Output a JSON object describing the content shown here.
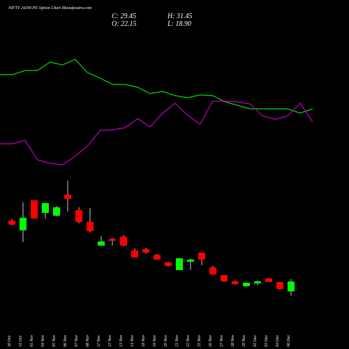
{
  "chart_data": {
    "type": "candlestick",
    "title": "NIFTY 24200 PE Option Chart Munafasutra.com",
    "ohlc_labels": {
      "close": "C: 29.45",
      "high": "H: 31.45",
      "open": "O: 22.15",
      "low": "L: 18.90"
    },
    "categories": [
      "30 Oct",
      "31 Oct",
      "01 Nov",
      "04 Nov",
      "05 Nov",
      "06 Nov",
      "07 Nov",
      "08 Nov",
      "11 Nov",
      "12 Nov",
      "13 Nov",
      "14 Nov",
      "18 Nov",
      "19 Nov",
      "20 Nov",
      "21 Nov",
      "22 Nov",
      "25 Nov",
      "26 Nov",
      "27 Nov",
      "28 Nov",
      "29 Nov",
      "02 Dec",
      "03 Dec",
      "04 Dec",
      "06 Dec"
    ],
    "open": [
      74.9,
      67.6,
      90,
      80.6,
      78.5,
      94.1,
      82.7,
      73.8,
      56.2,
      61.4,
      62.9,
      52.5,
      53.6,
      49.4,
      43.7,
      38,
      44.2,
      51,
      40,
      34.3,
      29.6,
      26,
      28.1,
      31.7,
      29.1,
      22.15
    ],
    "high": [
      76,
      88.4,
      90,
      87.9,
      85.8,
      104.5,
      84.8,
      84.2,
      63.4,
      61.9,
      64,
      54.1,
      54.6,
      49.9,
      44.2,
      46.8,
      46.8,
      51,
      41.1,
      34.3,
      30.2,
      28.6,
      30.2,
      32.2,
      29.1,
      31.45
    ],
    "low": [
      71.3,
      58.8,
      76.4,
      76.4,
      78,
      81.6,
      72.8,
      66,
      56.2,
      56.2,
      55.6,
      47.3,
      50.4,
      45.8,
      40.6,
      38,
      38,
      41.6,
      34.3,
      29.1,
      27,
      25.5,
      26.5,
      29.1,
      23.4,
      18.9
    ],
    "close": [
      71.8,
      77,
      76.4,
      87.9,
      84.8,
      91,
      73.8,
      67.1,
      59.3,
      59.8,
      56.2,
      47.3,
      51,
      45.8,
      41.1,
      46.8,
      45.8,
      45.8,
      34.8,
      29.6,
      27.6,
      28.6,
      29.6,
      29.1,
      23.9,
      29.45
    ],
    "ylim": [
      0,
      130
    ],
    "up_color": "#00ff00",
    "down_color": "#ff0000",
    "series": [
      {
        "color": "#00e000",
        "axis": "y2",
        "values": [
          96.5,
          96.5,
          99.5,
          99.5,
          105.5,
          103.5,
          107.5,
          98,
          94,
          89.5,
          89.5,
          87.5,
          83,
          84.5,
          81.5,
          80,
          82,
          81.5,
          77,
          74.5,
          72,
          72,
          72,
          72,
          69,
          72
        ]
      },
      {
        "color": "#c000c0",
        "axis": "y2",
        "values": [
          47,
          47,
          49.5,
          35.5,
          33,
          32,
          38,
          45.5,
          56.5,
          57,
          58.5,
          65,
          59,
          69,
          76,
          67.5,
          61,
          77.5,
          77.5,
          77,
          75.5,
          67,
          64.5,
          67,
          76,
          62.5
        ]
      }
    ],
    "y2lim": [
      0,
      150
    ]
  }
}
